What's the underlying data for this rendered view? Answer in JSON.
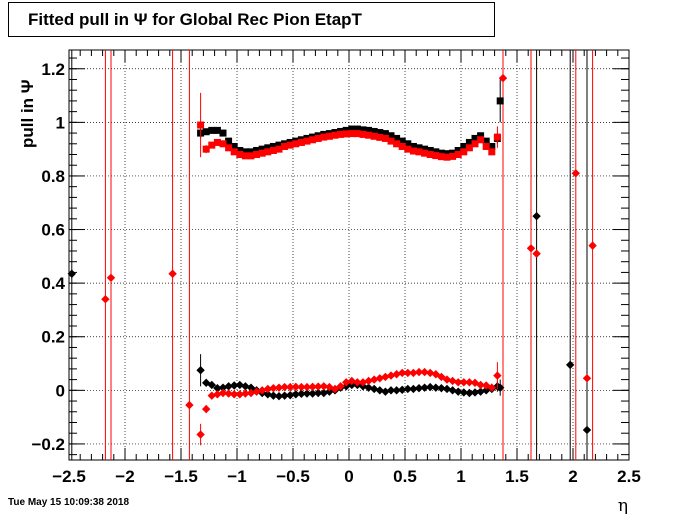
{
  "header": {
    "title": "Fitted pull in  Ψ  for Global Rec Pion EtapT"
  },
  "footer": {
    "timestamp": "Tue May 15 10:09:38 2018"
  },
  "chart_data": {
    "type": "scatter",
    "title": "Fitted pull in  Ψ  for Global Rec Pion EtapT",
    "xlabel": "η",
    "ylabel": "pull in  Ψ",
    "xlim": [
      -2.5,
      2.5
    ],
    "ylim": [
      -0.26,
      1.27
    ],
    "grid": true,
    "x_ticks": [
      -2.5,
      -2,
      -1.5,
      -1,
      -0.5,
      0,
      0.5,
      1,
      1.5,
      2,
      2.5
    ],
    "x_tick_labels": [
      "−2.5",
      "−2",
      "−1.5",
      "−1",
      "−0.5",
      "0",
      "0.5",
      "1",
      "1.5",
      "2",
      "2.5"
    ],
    "y_ticks": [
      -0.2,
      0,
      0.2,
      0.4,
      0.6,
      0.8,
      1,
      1.2
    ],
    "y_tick_labels": [
      "−0.2",
      "0",
      "0.2",
      "0.4",
      "0.6",
      "0.8",
      "1",
      "1.2"
    ],
    "series": [
      {
        "color": "#000000",
        "marker": "square",
        "x": [
          -1.325,
          -1.275,
          -1.225,
          -1.175,
          -1.125,
          -1.075,
          -1.025,
          -0.975,
          -0.925,
          -0.875,
          -0.825,
          -0.775,
          -0.725,
          -0.675,
          -0.625,
          -0.575,
          -0.525,
          -0.475,
          -0.425,
          -0.375,
          -0.325,
          -0.275,
          -0.225,
          -0.175,
          -0.125,
          -0.075,
          -0.025,
          0.025,
          0.075,
          0.125,
          0.175,
          0.225,
          0.275,
          0.325,
          0.375,
          0.425,
          0.475,
          0.525,
          0.575,
          0.625,
          0.675,
          0.725,
          0.775,
          0.825,
          0.875,
          0.925,
          0.975,
          1.025,
          1.075,
          1.125,
          1.175,
          1.225,
          1.275,
          1.325,
          1.35
        ],
        "y": [
          0.96,
          0.965,
          0.97,
          0.97,
          0.96,
          0.93,
          0.91,
          0.895,
          0.89,
          0.89,
          0.895,
          0.9,
          0.905,
          0.91,
          0.915,
          0.92,
          0.925,
          0.93,
          0.935,
          0.94,
          0.945,
          0.95,
          0.955,
          0.958,
          0.962,
          0.966,
          0.97,
          0.975,
          0.975,
          0.972,
          0.97,
          0.966,
          0.962,
          0.958,
          0.95,
          0.94,
          0.93,
          0.92,
          0.91,
          0.905,
          0.9,
          0.895,
          0.89,
          0.885,
          0.883,
          0.885,
          0.895,
          0.91,
          0.925,
          0.94,
          0.95,
          0.93,
          0.91,
          0.94,
          1.08
        ],
        "yerr": [
          0.02,
          0.01,
          0.008,
          0.007,
          0.007,
          0.007,
          0.006,
          0.006,
          0.006,
          0.006,
          0.006,
          0.006,
          0.006,
          0.006,
          0.006,
          0.006,
          0.006,
          0.006,
          0.006,
          0.006,
          0.006,
          0.006,
          0.006,
          0.006,
          0.006,
          0.006,
          0.006,
          0.006,
          0.006,
          0.006,
          0.006,
          0.006,
          0.006,
          0.006,
          0.006,
          0.006,
          0.006,
          0.006,
          0.006,
          0.006,
          0.006,
          0.006,
          0.006,
          0.006,
          0.006,
          0.006,
          0.006,
          0.006,
          0.006,
          0.007,
          0.008,
          0.01,
          0.012,
          0.02,
          0.08
        ]
      },
      {
        "color": "#ff0000",
        "marker": "square",
        "x": [
          -1.325,
          -1.275,
          -1.225,
          -1.175,
          -1.125,
          -1.075,
          -1.025,
          -0.975,
          -0.925,
          -0.875,
          -0.825,
          -0.775,
          -0.725,
          -0.675,
          -0.625,
          -0.575,
          -0.525,
          -0.475,
          -0.425,
          -0.375,
          -0.325,
          -0.275,
          -0.225,
          -0.175,
          -0.125,
          -0.075,
          -0.025,
          0.025,
          0.075,
          0.125,
          0.175,
          0.225,
          0.275,
          0.325,
          0.375,
          0.425,
          0.475,
          0.525,
          0.575,
          0.625,
          0.675,
          0.725,
          0.775,
          0.825,
          0.875,
          0.925,
          0.975,
          1.025,
          1.075,
          1.125,
          1.175,
          1.225,
          1.275,
          1.325
        ],
        "y": [
          0.99,
          0.9,
          0.915,
          0.925,
          0.92,
          0.905,
          0.89,
          0.88,
          0.875,
          0.875,
          0.88,
          0.885,
          0.89,
          0.895,
          0.9,
          0.91,
          0.915,
          0.92,
          0.925,
          0.93,
          0.935,
          0.94,
          0.945,
          0.948,
          0.952,
          0.955,
          0.957,
          0.958,
          0.958,
          0.955,
          0.952,
          0.948,
          0.944,
          0.94,
          0.93,
          0.92,
          0.91,
          0.9,
          0.893,
          0.89,
          0.885,
          0.88,
          0.876,
          0.872,
          0.87,
          0.873,
          0.88,
          0.89,
          0.905,
          0.92,
          0.935,
          0.91,
          0.89,
          0.945
        ],
        "yerr": [
          0.12,
          0.015,
          0.01,
          0.008,
          0.007,
          0.007,
          0.006,
          0.006,
          0.006,
          0.006,
          0.006,
          0.006,
          0.006,
          0.006,
          0.006,
          0.006,
          0.006,
          0.006,
          0.006,
          0.006,
          0.006,
          0.006,
          0.006,
          0.006,
          0.006,
          0.006,
          0.006,
          0.006,
          0.006,
          0.006,
          0.006,
          0.006,
          0.006,
          0.006,
          0.006,
          0.006,
          0.006,
          0.006,
          0.006,
          0.006,
          0.006,
          0.006,
          0.006,
          0.006,
          0.006,
          0.006,
          0.006,
          0.006,
          0.006,
          0.007,
          0.008,
          0.01,
          0.012,
          0.04
        ]
      },
      {
        "color": "#000000",
        "marker": "diamond",
        "x": [
          -2.475,
          -1.325,
          -1.275,
          -1.225,
          -1.175,
          -1.125,
          -1.075,
          -1.025,
          -0.975,
          -0.925,
          -0.875,
          -0.825,
          -0.775,
          -0.725,
          -0.675,
          -0.625,
          -0.575,
          -0.525,
          -0.475,
          -0.425,
          -0.375,
          -0.325,
          -0.275,
          -0.225,
          -0.175,
          -0.125,
          -0.075,
          -0.025,
          0.025,
          0.075,
          0.125,
          0.175,
          0.225,
          0.275,
          0.325,
          0.375,
          0.425,
          0.475,
          0.525,
          0.575,
          0.625,
          0.675,
          0.725,
          0.775,
          0.825,
          0.875,
          0.925,
          0.975,
          1.025,
          1.075,
          1.125,
          1.175,
          1.225,
          1.275,
          1.325,
          1.35,
          1.675,
          1.975,
          2.125
        ],
        "y": [
          0.435,
          0.075,
          0.028,
          0.02,
          0.008,
          0.01,
          0.015,
          0.018,
          0.02,
          0.015,
          0.01,
          0.0,
          -0.01,
          -0.015,
          -0.02,
          -0.022,
          -0.02,
          -0.018,
          -0.015,
          -0.013,
          -0.012,
          -0.012,
          -0.01,
          -0.01,
          -0.005,
          0.0,
          0.01,
          0.015,
          0.02,
          0.02,
          0.015,
          0.01,
          0.005,
          0.0,
          -0.005,
          0.0,
          0.0,
          0.002,
          0.005,
          0.005,
          0.008,
          0.01,
          0.012,
          0.01,
          0.008,
          0.005,
          0.0,
          -0.005,
          -0.008,
          -0.01,
          -0.008,
          -0.005,
          0.0,
          0.005,
          0.015,
          0.01,
          0.65,
          0.095,
          -0.148
        ],
        "yerr": [
          0.0,
          0.06,
          0.01,
          0.008,
          0.007,
          0.006,
          0.006,
          0.006,
          0.006,
          0.006,
          0.006,
          0.006,
          0.006,
          0.006,
          0.006,
          0.006,
          0.006,
          0.006,
          0.006,
          0.006,
          0.006,
          0.006,
          0.006,
          0.006,
          0.006,
          0.006,
          0.006,
          0.006,
          0.006,
          0.006,
          0.006,
          0.006,
          0.006,
          0.006,
          0.006,
          0.006,
          0.006,
          0.006,
          0.006,
          0.006,
          0.006,
          0.006,
          0.006,
          0.006,
          0.006,
          0.006,
          0.006,
          0.006,
          0.006,
          0.006,
          0.007,
          0.008,
          0.01,
          0.012,
          0.02,
          0.03,
          0.0,
          0.0,
          0.0
        ]
      },
      {
        "color": "#ff0000",
        "marker": "diamond",
        "x": [
          -2.175,
          -2.125,
          -1.575,
          -1.425,
          -1.325,
          -1.275,
          -1.225,
          -1.175,
          -1.125,
          -1.075,
          -1.025,
          -0.975,
          -0.925,
          -0.875,
          -0.825,
          -0.775,
          -0.725,
          -0.675,
          -0.625,
          -0.575,
          -0.525,
          -0.475,
          -0.425,
          -0.375,
          -0.325,
          -0.275,
          -0.225,
          -0.175,
          -0.125,
          -0.075,
          -0.025,
          0.025,
          0.075,
          0.125,
          0.175,
          0.225,
          0.275,
          0.325,
          0.375,
          0.425,
          0.475,
          0.525,
          0.575,
          0.625,
          0.675,
          0.725,
          0.775,
          0.825,
          0.875,
          0.925,
          0.975,
          1.025,
          1.075,
          1.125,
          1.175,
          1.225,
          1.275,
          1.325,
          1.375,
          1.625,
          1.675,
          2.025,
          2.125,
          2.175
        ],
        "y": [
          0.34,
          0.42,
          0.435,
          -0.055,
          -0.165,
          -0.07,
          -0.02,
          -0.015,
          -0.01,
          -0.012,
          -0.015,
          -0.015,
          -0.012,
          -0.01,
          -0.005,
          0.0,
          0.005,
          0.008,
          0.01,
          0.012,
          0.012,
          0.013,
          0.012,
          0.012,
          0.013,
          0.014,
          0.015,
          0.012,
          0.005,
          0.015,
          0.03,
          0.035,
          0.03,
          0.03,
          0.035,
          0.04,
          0.045,
          0.05,
          0.055,
          0.06,
          0.065,
          0.065,
          0.065,
          0.068,
          0.068,
          0.065,
          0.06,
          0.05,
          0.04,
          0.035,
          0.03,
          0.03,
          0.03,
          0.028,
          0.02,
          0.018,
          0.01,
          0.055,
          1.165,
          0.53,
          0.51,
          0.81,
          0.045,
          0.54
        ],
        "yerr": [
          0.0,
          0.0,
          0.0,
          0.0,
          0.04,
          0.015,
          0.01,
          0.008,
          0.007,
          0.006,
          0.006,
          0.006,
          0.006,
          0.006,
          0.006,
          0.006,
          0.006,
          0.006,
          0.006,
          0.006,
          0.006,
          0.006,
          0.006,
          0.006,
          0.006,
          0.006,
          0.006,
          0.006,
          0.006,
          0.006,
          0.006,
          0.006,
          0.006,
          0.006,
          0.006,
          0.006,
          0.006,
          0.006,
          0.006,
          0.006,
          0.006,
          0.006,
          0.006,
          0.006,
          0.006,
          0.006,
          0.006,
          0.006,
          0.006,
          0.006,
          0.006,
          0.006,
          0.007,
          0.008,
          0.01,
          0.012,
          0.015,
          0.05,
          0.0,
          0.0,
          0.0,
          0.0,
          0.0,
          0.0
        ]
      }
    ],
    "vertical_lines": [
      {
        "x": -2.475,
        "color": "#000000"
      },
      {
        "x": -2.175,
        "color": "#ff0000"
      },
      {
        "x": -2.125,
        "color": "#ff0000"
      },
      {
        "x": -1.575,
        "color": "#ff0000"
      },
      {
        "x": -1.425,
        "color": "#ff0000"
      },
      {
        "x": 1.375,
        "color": "#ff0000"
      },
      {
        "x": 1.625,
        "color": "#ff0000"
      },
      {
        "x": 1.675,
        "color": "#000000"
      },
      {
        "x": 1.975,
        "color": "#000000"
      },
      {
        "x": 2.025,
        "color": "#ff0000"
      },
      {
        "x": 2.125,
        "color": "#000000"
      },
      {
        "x": 2.175,
        "color": "#ff0000"
      }
    ]
  }
}
